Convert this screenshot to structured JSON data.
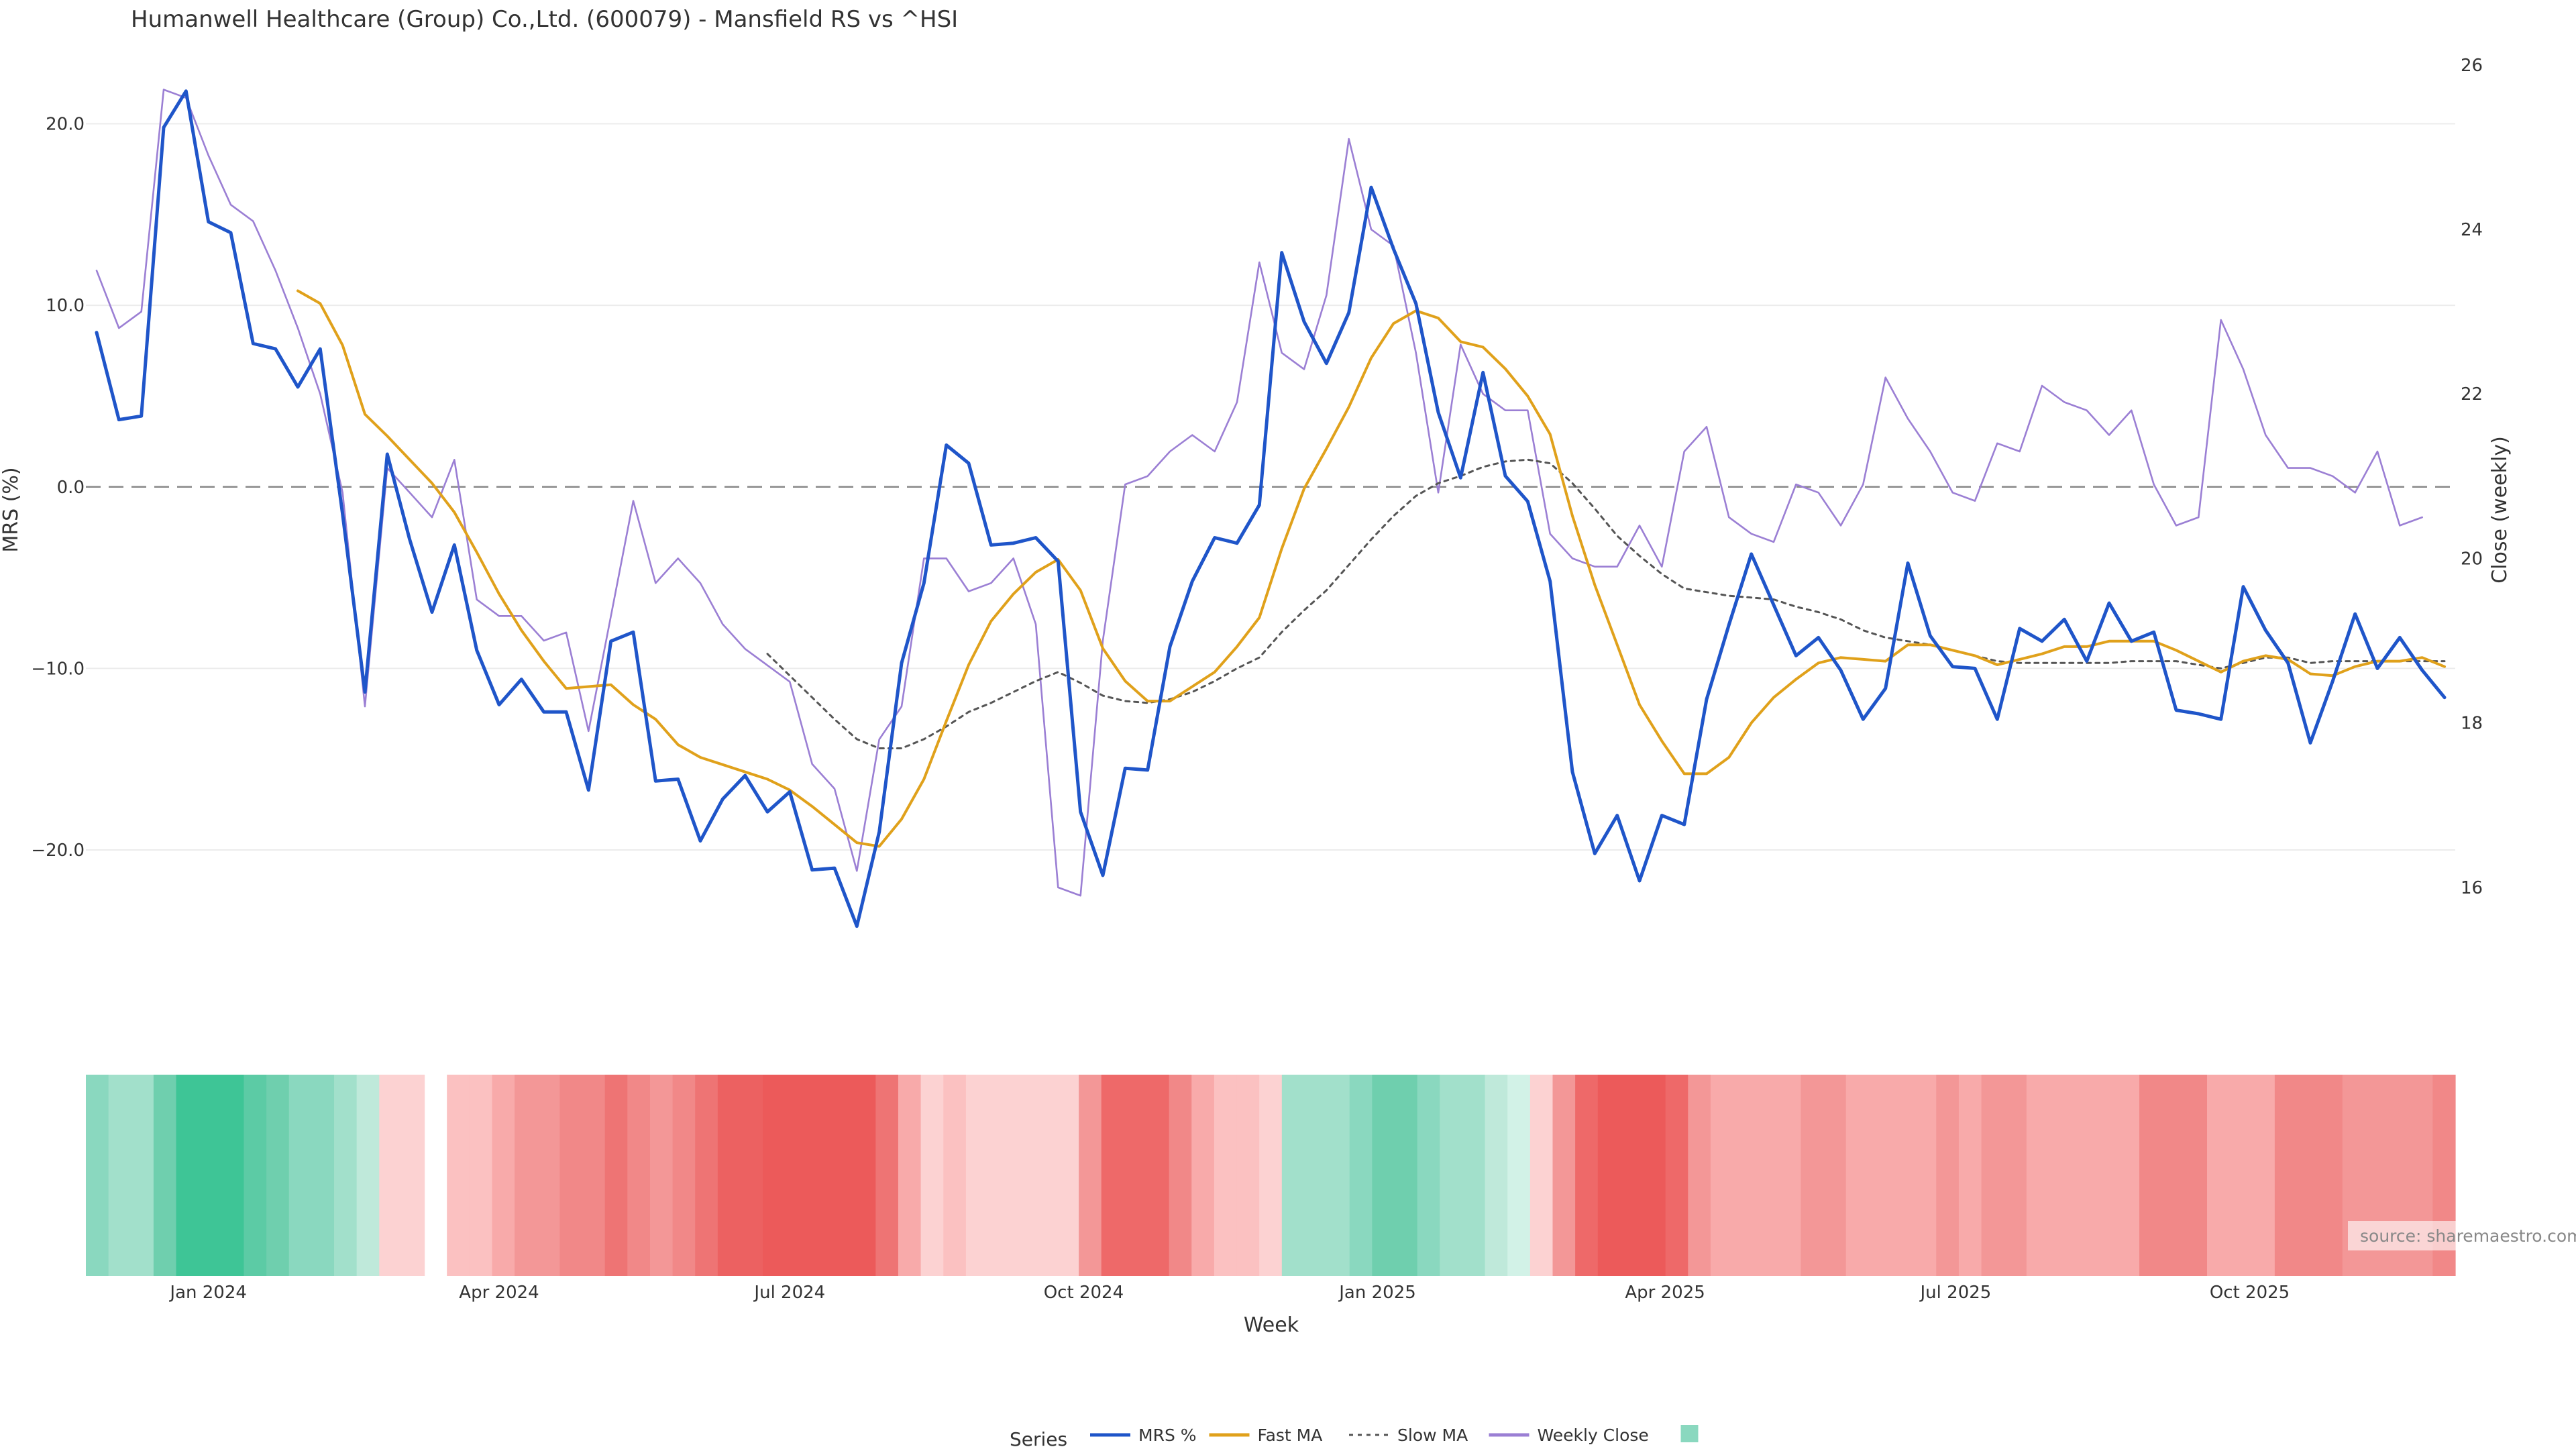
{
  "chart_data": {
    "type": "line",
    "title": "Humanwell Healthcare (Group) Co.,Ltd. (600079) - Mansfield RS vs ^HSI",
    "xlabel": "Week",
    "ylabel_left": "MRS (%)",
    "ylabel_right": "Close (weekly)",
    "source": "source: sharemaestro.com",
    "x_start": "2023-11-27",
    "x_interval": "1 week",
    "x_ticks": [
      {
        "label": "Jan 2024",
        "date": "2024-01-01"
      },
      {
        "label": "Apr 2024",
        "date": "2024-04-01"
      },
      {
        "label": "Jul 2024",
        "date": "2024-07-01"
      },
      {
        "label": "Oct 2024",
        "date": "2024-10-01"
      },
      {
        "label": "Jan 2025",
        "date": "2025-01-01"
      },
      {
        "label": "Apr 2025",
        "date": "2025-04-01"
      },
      {
        "label": "Jul 2025",
        "date": "2025-07-01"
      },
      {
        "label": "Oct 2025",
        "date": "2025-10-01"
      }
    ],
    "y_left_ticks": [
      {
        "value": 20,
        "label": "20.0"
      },
      {
        "value": 10,
        "label": "10.0"
      },
      {
        "value": 0,
        "label": "0.0"
      },
      {
        "value": -10,
        "label": "−10.0"
      },
      {
        "value": -20,
        "label": "−20.0"
      }
    ],
    "y_right_ticks": [
      {
        "value": 16,
        "label": "16"
      },
      {
        "value": 18,
        "label": "18"
      },
      {
        "value": 20,
        "label": "20"
      },
      {
        "value": 22,
        "label": "22"
      },
      {
        "value": 24,
        "label": "24"
      },
      {
        "value": 26,
        "label": "26"
      }
    ],
    "y_left_range": [
      -27.5,
      24.6
    ],
    "y_right_range": [
      14.8,
      26.3
    ],
    "zero_line": 0,
    "legend_title": "Series",
    "legend_position": "bottom-center",
    "series": [
      {
        "name": "MRS %",
        "axis": "left",
        "color": "#1f55c9",
        "style": "solid",
        "values": [
          8.5,
          3.7,
          3.9,
          19.8,
          21.8,
          14.6,
          14.0,
          7.9,
          7.6,
          5.5,
          7.6,
          -1.5,
          -11.3,
          1.8,
          -2.9,
          -6.9,
          -3.2,
          -9.0,
          -12.0,
          -10.6,
          -12.4,
          -12.4,
          -16.7,
          -8.5,
          -8.0,
          -16.2,
          -16.1,
          -19.5,
          -17.2,
          -15.9,
          -17.9,
          -16.8,
          -21.1,
          -21.0,
          -24.2,
          -19.0,
          -9.7,
          -5.3,
          2.3,
          1.3,
          -3.2,
          -3.1,
          -2.8,
          -4.1,
          -17.9,
          -21.4,
          -15.5,
          -15.6,
          -8.8,
          -5.2,
          -2.8,
          -3.1,
          -1.0,
          12.9,
          9.1,
          6.8,
          9.6,
          16.5,
          13.1,
          10.1,
          4.1,
          0.5,
          6.3,
          0.6,
          -0.8,
          -5.2,
          -15.7,
          -20.2,
          -18.1,
          -21.7,
          -18.1,
          -18.6,
          -11.7,
          -7.6,
          -3.7,
          -6.5,
          -9.3,
          -8.3,
          -10.1,
          -12.8,
          -11.1,
          -4.2,
          -8.2,
          -9.9,
          -10.0,
          -12.8,
          -7.8,
          -8.5,
          -7.3,
          -9.6,
          -6.4,
          -8.5,
          -8.0,
          -12.3,
          -12.5,
          -12.8,
          -5.5,
          -7.9,
          -9.7,
          -14.1,
          -10.7,
          -7.0,
          -10.0,
          -8.3,
          -10.1,
          -11.6
        ]
      },
      {
        "name": "Fast MA",
        "axis": "left",
        "color": "#e0a11b",
        "style": "solid",
        "values": [
          null,
          null,
          null,
          null,
          null,
          null,
          null,
          null,
          null,
          10.8,
          10.1,
          7.8,
          4.0,
          2.8,
          1.5,
          0.2,
          -1.4,
          -3.6,
          -5.9,
          -7.9,
          -9.6,
          -11.1,
          -11.0,
          -10.9,
          -12.0,
          -12.8,
          -14.2,
          -14.9,
          -15.3,
          -15.7,
          -16.1,
          -16.7,
          -17.6,
          -18.6,
          -19.6,
          -19.8,
          -18.3,
          -16.1,
          -12.9,
          -9.8,
          -7.4,
          -5.9,
          -4.7,
          -4.0,
          -5.7,
          -8.9,
          -10.7,
          -11.8,
          -11.8,
          -11.0,
          -10.2,
          -8.8,
          -7.2,
          -3.4,
          -0.1,
          2.1,
          4.4,
          7.1,
          9.0,
          9.7,
          9.3,
          8.0,
          7.7,
          6.5,
          5.0,
          2.9,
          -1.6,
          -5.4,
          -8.7,
          -12.0,
          -14.0,
          -15.8,
          -15.8,
          -14.9,
          -13.0,
          -11.6,
          -10.6,
          -9.7,
          -9.4,
          -9.5,
          -9.6,
          -8.7,
          -8.7,
          -9.0,
          -9.3,
          -9.8,
          -9.5,
          -9.2,
          -8.8,
          -8.8,
          -8.5,
          -8.5,
          -8.5,
          -9.0,
          -9.6,
          -10.2,
          -9.6,
          -9.3,
          -9.5,
          -10.3,
          -10.4,
          -9.9,
          -9.6,
          -9.6,
          -9.4,
          -9.9
        ]
      },
      {
        "name": "Slow MA",
        "axis": "left",
        "color": "#555555",
        "style": "dotted",
        "values": [
          null,
          null,
          null,
          null,
          null,
          null,
          null,
          null,
          null,
          null,
          null,
          null,
          null,
          null,
          null,
          null,
          null,
          null,
          null,
          null,
          null,
          null,
          null,
          null,
          null,
          null,
          null,
          null,
          null,
          null,
          -9.2,
          -10.4,
          -11.6,
          -12.8,
          -13.9,
          -14.4,
          -14.4,
          -13.9,
          -13.2,
          -12.4,
          -11.9,
          -11.3,
          -10.7,
          -10.2,
          -10.8,
          -11.5,
          -11.8,
          -11.9,
          -11.7,
          -11.3,
          -10.7,
          -10.0,
          -9.4,
          -8.0,
          -6.8,
          -5.7,
          -4.3,
          -2.9,
          -1.6,
          -0.5,
          0.2,
          0.6,
          1.1,
          1.4,
          1.5,
          1.3,
          0.2,
          -1.2,
          -2.7,
          -3.8,
          -4.8,
          -5.6,
          -5.8,
          -6.0,
          -6.1,
          -6.2,
          -6.6,
          -6.9,
          -7.3,
          -7.9,
          -8.3,
          -8.5,
          -8.7,
          -9.0,
          -9.3,
          -9.6,
          -9.7,
          -9.7,
          -9.7,
          -9.7,
          -9.7,
          -9.6,
          -9.6,
          -9.6,
          -9.8,
          -10.0,
          -9.7,
          -9.4,
          -9.4,
          -9.7,
          -9.6,
          -9.6,
          -9.6,
          -9.6,
          -9.6,
          -9.6
        ]
      },
      {
        "name": "Weekly Close",
        "axis": "right",
        "color": "#9b7fd4",
        "style": "solid",
        "values": [
          23.5,
          22.8,
          23.0,
          25.7,
          25.6,
          24.9,
          24.3,
          24.1,
          23.5,
          22.8,
          22.0,
          20.8,
          18.2,
          21.1,
          20.8,
          20.5,
          21.2,
          19.5,
          19.3,
          19.3,
          19.0,
          19.1,
          17.9,
          19.3,
          20.7,
          19.7,
          20.0,
          19.7,
          19.2,
          18.9,
          18.7,
          18.5,
          17.5,
          17.2,
          16.2,
          17.8,
          18.2,
          20.0,
          20.0,
          19.6,
          19.7,
          20.0,
          19.2,
          16.0,
          15.9,
          19.0,
          20.9,
          21.0,
          21.3,
          21.5,
          21.3,
          21.9,
          23.6,
          22.5,
          22.3,
          23.2,
          25.1,
          24.0,
          23.8,
          22.5,
          20.8,
          22.6,
          22.0,
          21.8,
          21.8,
          20.3,
          20.0,
          19.9,
          19.9,
          20.4,
          19.9,
          21.3,
          21.6,
          20.5,
          20.3,
          20.2,
          20.9,
          20.8,
          20.4,
          20.9,
          22.2,
          21.7,
          21.3,
          20.8,
          20.7,
          21.4,
          21.3,
          22.1,
          21.9,
          21.8,
          21.5,
          21.8,
          20.9,
          20.4,
          20.5,
          22.9,
          22.3,
          21.5,
          21.1,
          21.1,
          21.0,
          20.8,
          21.3,
          20.4,
          20.5
        ]
      }
    ],
    "heatmap": {
      "description_colors": "per-week relative strength band",
      "cells": [
        "#8ad8bf",
        "#a2e0cb",
        "#a2e0cb",
        "#6fcfae",
        "#3ec596",
        "#3ec596",
        "#3ec596",
        "#5ccba5",
        "#6fcfae",
        "#8ad8bf",
        "#8ad8bf",
        "#a2e0cb",
        "#bfe9da",
        "#fcd2d2",
        "#fcd2d2",
        null,
        "#fbc1c1",
        "#fbc1c1",
        "#f8aaaa",
        "#f39797",
        "#f39797",
        "#f18888",
        "#f18888",
        "#ee7474",
        "#f18888",
        "#f39797",
        "#f18888",
        "#ee7474",
        "#ec6161",
        "#ec6161",
        "#ec5a5a",
        "#ec5a5a",
        "#ec5a5a",
        "#ec5a5a",
        "#ec5a5a",
        "#ee7474",
        "#f8aaaa",
        "#fcd2d2",
        "#fbc1c1",
        "#fcd2d2",
        "#fcd2d2",
        "#fcd2d2",
        "#fcd2d2",
        "#fcd2d2",
        "#f39797",
        "#ee6969",
        "#ee6969",
        "#ee6969",
        "#f18888",
        "#f8aaaa",
        "#fbc1c1",
        "#fbc1c1",
        "#fcd2d2",
        "#a2e0cb",
        "#a2e0cb",
        "#a2e0cb",
        "#8ad8bf",
        "#6fcfae",
        "#6fcfae",
        "#8ad8bf",
        "#a2e0cb",
        "#a2e0cb",
        "#bfe9da",
        "#d2f2e7",
        "#fcd2d2",
        "#f39797",
        "#ee6969",
        "#ec5a5a",
        "#ec5a5a",
        "#ec5a5a",
        "#ee6969",
        "#f39797",
        "#f8aaaa",
        "#f8aaaa",
        "#f8aaaa",
        "#f8aaaa",
        "#f39797",
        "#f39797",
        "#f8aaaa",
        "#f8aaaa",
        "#f8aaaa",
        "#f8aaaa",
        "#f39797",
        "#f8aaaa",
        "#f39797",
        "#f39797",
        "#f8aaaa",
        "#f8aaaa",
        "#f8aaaa",
        "#f8aaaa",
        "#f8aaaa",
        "#f18888",
        "#f18888",
        "#f18888",
        "#f8aaaa",
        "#f8aaaa",
        "#f8aaaa",
        "#f18888",
        "#f18888",
        "#f18888",
        "#f39797",
        "#f39797",
        "#f39797",
        "#f39797",
        "#f18888"
      ]
    },
    "legend_items": [
      {
        "name": "MRS %",
        "color": "#1f55c9",
        "style": "solid"
      },
      {
        "name": "Fast MA",
        "color": "#e0a11b",
        "style": "solid"
      },
      {
        "name": "Slow MA",
        "color": "#555555",
        "style": "dotted"
      },
      {
        "name": "Weekly Close",
        "color": "#9b7fd4",
        "style": "solid"
      },
      {
        "name": "",
        "color": "#8ad8bf",
        "style": "swatch"
      }
    ]
  }
}
